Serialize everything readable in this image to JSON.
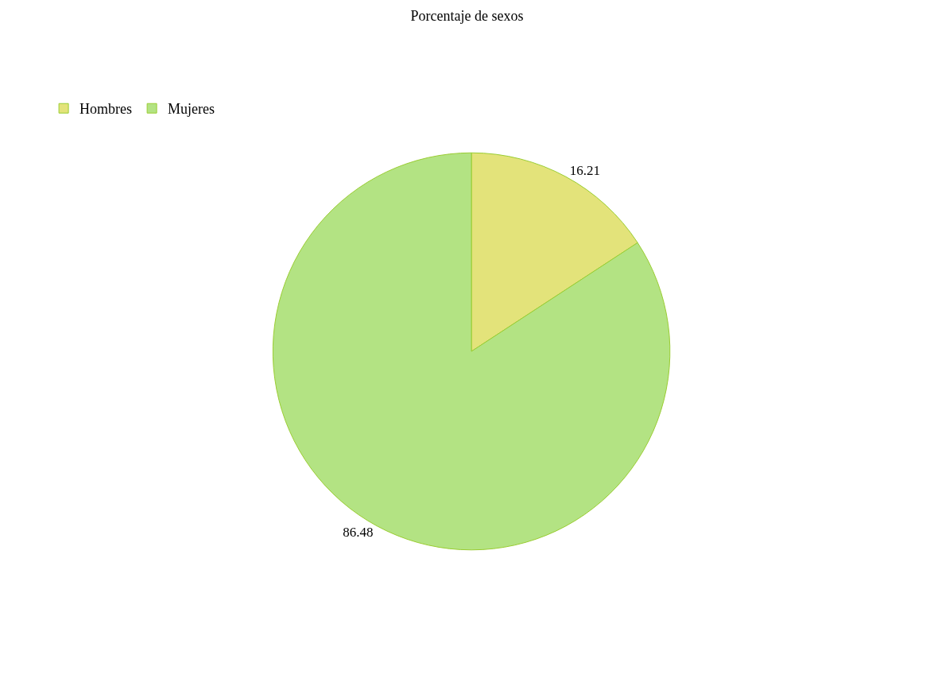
{
  "chart_data": {
    "type": "pie",
    "title": "Porcentaje de sexos",
    "categories": [
      "Hombres",
      "Mujeres"
    ],
    "values": [
      16.21,
      86.48
    ],
    "colors": [
      "#e3e37a",
      "#b3e383"
    ],
    "data_labels": true,
    "legend": "top left"
  }
}
